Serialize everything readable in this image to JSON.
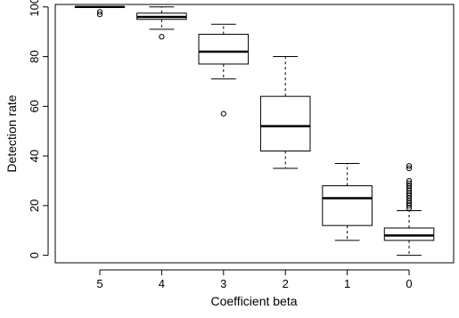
{
  "chart_data": {
    "type": "boxplot",
    "title": "",
    "xlabel": "Coefficient beta",
    "ylabel": "Detection rate",
    "ylim": [
      -3,
      101
    ],
    "yticks": [
      "0",
      "20",
      "40",
      "60",
      "80",
      "100"
    ],
    "categories": [
      "5",
      "4",
      "3",
      "2",
      "1",
      "0"
    ],
    "grid": false,
    "legend": "none",
    "boxes": [
      {
        "category": "5",
        "whisker_low": 100,
        "q1": 100,
        "median": 100,
        "q3": 100,
        "whisker_high": 100,
        "outliers": [
          98,
          97
        ]
      },
      {
        "category": "4",
        "whisker_low": 91,
        "q1": 95,
        "median": 96,
        "q3": 97.5,
        "whisker_high": 100,
        "outliers": [
          88
        ]
      },
      {
        "category": "3",
        "whisker_low": 71,
        "q1": 77,
        "median": 82,
        "q3": 89,
        "whisker_high": 93,
        "outliers": [
          57
        ]
      },
      {
        "category": "2",
        "whisker_low": 35,
        "q1": 42,
        "median": 52,
        "q3": 64,
        "whisker_high": 80,
        "outliers": []
      },
      {
        "category": "1",
        "whisker_low": 6,
        "q1": 12,
        "median": 23,
        "q3": 28,
        "whisker_high": 37,
        "outliers": []
      },
      {
        "category": "0",
        "whisker_low": 0,
        "q1": 6,
        "median": 8,
        "q3": 11,
        "whisker_high": 18,
        "outliers": [
          19,
          20,
          21,
          22,
          23,
          24,
          25,
          26,
          27,
          28,
          29,
          30,
          35,
          36
        ]
      }
    ]
  }
}
